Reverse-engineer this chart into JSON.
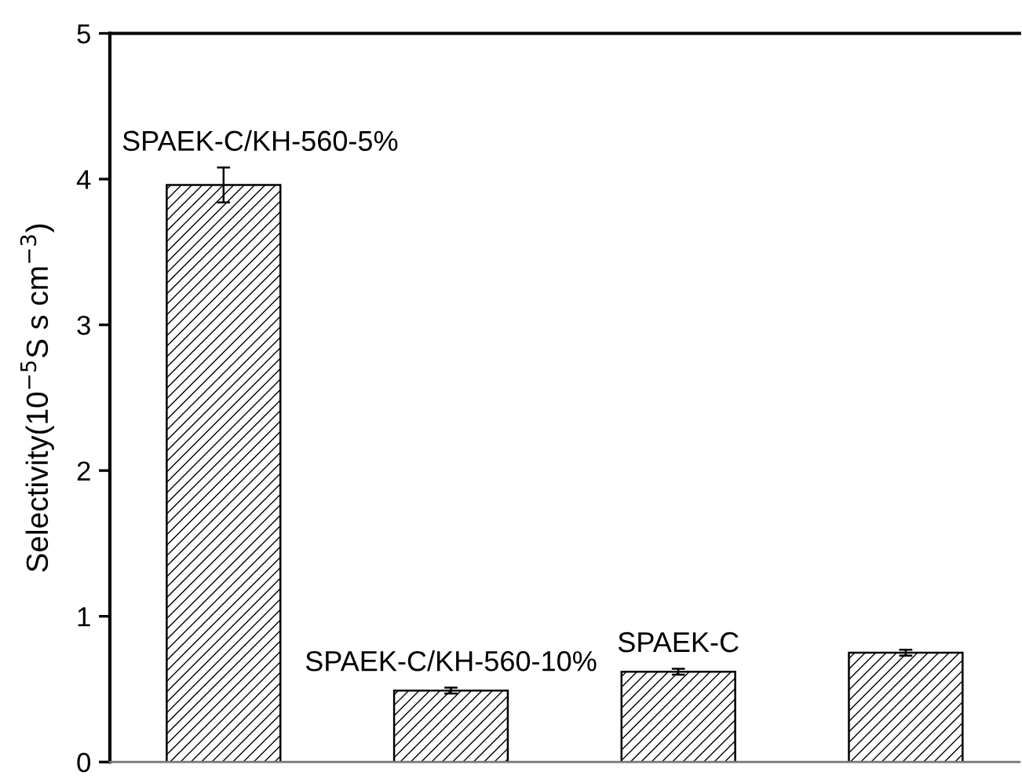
{
  "chart_data": {
    "type": "bar",
    "categories": [
      "SPAEK-C/KH-560-5%",
      "SPAEK-C/KH-560-10%",
      "SPAEK-C",
      null
    ],
    "values": [
      3.96,
      0.49,
      0.62,
      0.75
    ],
    "errors": [
      0.12,
      0.02,
      0.02,
      0.02
    ],
    "color": "#000000",
    "ylabel": "Selectivity(10$^{−5}$S s cm$^{−3}$)",
    "ylim": [
      0,
      5
    ],
    "yticks": [
      0,
      1,
      2,
      3,
      4,
      5
    ],
    "tick_labels": "y",
    "grid": false
  }
}
